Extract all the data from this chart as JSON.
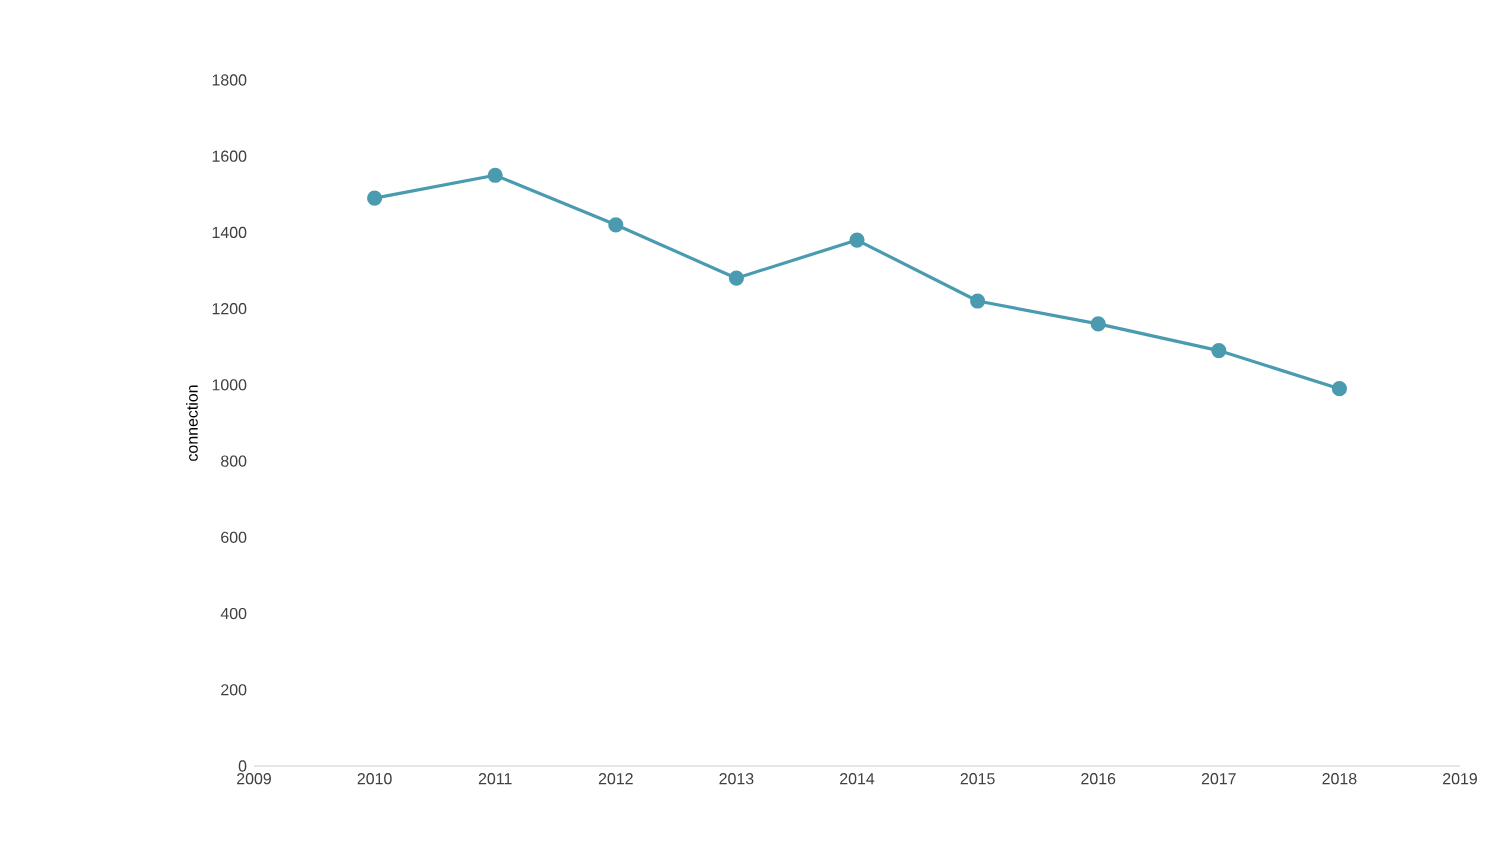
{
  "chart_data": {
    "type": "line",
    "ylabel": "connection",
    "x": [
      2010,
      2011,
      2012,
      2013,
      2014,
      2015,
      2016,
      2017,
      2018
    ],
    "series": [
      {
        "color": "#4a9bb0",
        "values": [
          1490,
          1550,
          1420,
          1280,
          1380,
          1220,
          1160,
          1090,
          990
        ]
      }
    ],
    "xlim": [
      2009,
      2019
    ],
    "xticks": [
      2009,
      2010,
      2011,
      2012,
      2013,
      2014,
      2015,
      2016,
      2017,
      2018,
      2019
    ],
    "ylim": [
      0,
      1800
    ],
    "yticks": [
      0,
      200,
      400,
      600,
      800,
      1000,
      1200,
      1400,
      1600,
      1800
    ],
    "grid": false,
    "marker": "circle",
    "line_style": "solid"
  }
}
